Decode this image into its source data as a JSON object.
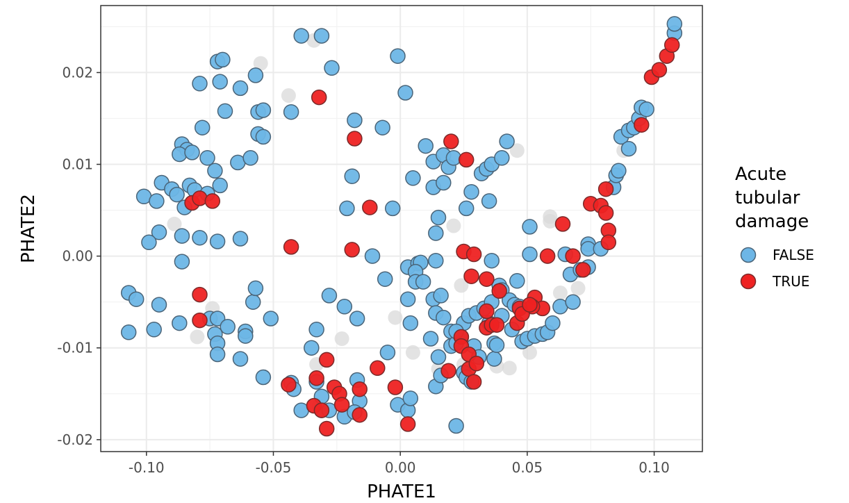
{
  "chart_data": {
    "type": "scatter",
    "xlabel": "PHATE1",
    "ylabel": "PHATE2",
    "xlim": [
      -0.118,
      0.119
    ],
    "ylim": [
      -0.0213,
      0.0273
    ],
    "x_ticks": [
      -0.1,
      -0.05,
      0.0,
      0.05,
      0.1
    ],
    "x_tick_labels": [
      "-0.10",
      "-0.05",
      "0.00",
      "0.05",
      "0.10"
    ],
    "y_ticks": [
      -0.02,
      -0.01,
      0.0,
      0.01,
      0.02
    ],
    "y_tick_labels": [
      "-0.02",
      "-0.01",
      "0.00",
      "0.01",
      "0.02"
    ],
    "grid": true,
    "legend": {
      "title_lines": [
        "Acute",
        "tubular",
        "damage"
      ],
      "position": "right",
      "entries": [
        {
          "label": "FALSE",
          "color": "#6db6e6"
        },
        {
          "label": "TRUE",
          "color": "#ee2222"
        }
      ]
    },
    "series": [
      {
        "name": "NA",
        "color": "#d9d9d9",
        "points": [
          [
            -0.055,
            0.021
          ],
          [
            -0.034,
            0.0235
          ],
          [
            -0.044,
            0.0175
          ],
          [
            -0.08,
            -0.0088
          ],
          [
            -0.074,
            -0.0057
          ],
          [
            -0.089,
            0.0035
          ],
          [
            -0.033,
            -0.0118
          ],
          [
            -0.023,
            -0.009
          ],
          [
            -0.002,
            -0.0067
          ],
          [
            0.021,
            0.0033
          ],
          [
            0.024,
            -0.0032
          ],
          [
            0.046,
            0.0115
          ],
          [
            0.059,
            0.0043
          ],
          [
            0.059,
            0.0038
          ],
          [
            0.07,
            -0.0035
          ],
          [
            0.038,
            -0.012
          ],
          [
            0.043,
            -0.0122
          ],
          [
            0.051,
            -0.0105
          ],
          [
            0.088,
            0.0115
          ],
          [
            0.015,
            -0.0123
          ],
          [
            0.025,
            -0.0118
          ],
          [
            0.063,
            -0.004
          ],
          [
            -0.032,
            -0.0163
          ],
          [
            0.005,
            -0.0105
          ]
        ]
      },
      {
        "name": "FALSE",
        "color": "#6db6e6",
        "points": [
          [
            -0.039,
            0.024
          ],
          [
            -0.031,
            0.024
          ],
          [
            -0.027,
            0.0205
          ],
          [
            -0.001,
            0.0218
          ],
          [
            0.002,
            0.0178
          ],
          [
            -0.079,
            0.0188
          ],
          [
            -0.072,
            0.0212
          ],
          [
            -0.07,
            0.0214
          ],
          [
            -0.071,
            0.019
          ],
          [
            -0.063,
            0.0183
          ],
          [
            -0.057,
            0.0197
          ],
          [
            -0.069,
            0.0158
          ],
          [
            -0.056,
            0.0157
          ],
          [
            -0.054,
            0.0159
          ],
          [
            -0.043,
            0.0157
          ],
          [
            -0.078,
            0.014
          ],
          [
            -0.056,
            0.0133
          ],
          [
            -0.054,
            0.013
          ],
          [
            -0.086,
            0.0122
          ],
          [
            -0.084,
            0.0116
          ],
          [
            -0.087,
            0.0111
          ],
          [
            -0.082,
            0.0113
          ],
          [
            -0.076,
            0.0107
          ],
          [
            -0.073,
            0.0093
          ],
          [
            -0.064,
            0.0102
          ],
          [
            -0.059,
            0.0107
          ],
          [
            -0.094,
            0.008
          ],
          [
            -0.09,
            0.0073
          ],
          [
            -0.088,
            0.0067
          ],
          [
            -0.083,
            0.0077
          ],
          [
            -0.081,
            0.0072
          ],
          [
            -0.076,
            0.0068
          ],
          [
            -0.071,
            0.0077
          ],
          [
            -0.101,
            0.0065
          ],
          [
            -0.096,
            0.006
          ],
          [
            -0.085,
            0.0053
          ],
          [
            -0.095,
            0.0026
          ],
          [
            -0.099,
            0.0015
          ],
          [
            -0.086,
            0.0022
          ],
          [
            -0.079,
            0.002
          ],
          [
            -0.072,
            0.0016
          ],
          [
            -0.063,
            0.0019
          ],
          [
            -0.086,
            -0.0006
          ],
          [
            -0.018,
            0.0148
          ],
          [
            -0.007,
            0.014
          ],
          [
            0.01,
            0.012
          ],
          [
            0.013,
            0.0103
          ],
          [
            0.017,
            0.011
          ],
          [
            0.019,
            0.0097
          ],
          [
            0.021,
            0.0107
          ],
          [
            0.032,
            0.009
          ],
          [
            0.034,
            0.0095
          ],
          [
            0.036,
            0.01
          ],
          [
            0.04,
            0.0107
          ],
          [
            0.042,
            0.0125
          ],
          [
            -0.019,
            0.0087
          ],
          [
            0.005,
            0.0085
          ],
          [
            0.013,
            0.0075
          ],
          [
            0.017,
            0.008
          ],
          [
            0.028,
            0.007
          ],
          [
            -0.021,
            0.0052
          ],
          [
            -0.003,
            0.0052
          ],
          [
            0.026,
            0.0052
          ],
          [
            0.035,
            0.006
          ],
          [
            0.015,
            0.0042
          ],
          [
            0.014,
            0.0025
          ],
          [
            -0.011,
            0
          ],
          [
            0.003,
            -0.0012
          ],
          [
            0.007,
            -0.0008
          ],
          [
            0.008,
            -0.0007
          ],
          [
            0.014,
            -0.0005
          ],
          [
            0.006,
            -0.0017
          ],
          [
            -0.006,
            -0.0025
          ],
          [
            0.006,
            -0.0028
          ],
          [
            0.009,
            -0.0028
          ],
          [
            0.036,
            -0.0005
          ],
          [
            0.039,
            -0.0032
          ],
          [
            0.046,
            -0.0027
          ],
          [
            0.051,
            0.0032
          ],
          [
            0.051,
            0.0002
          ],
          [
            0.065,
            0.0002
          ],
          [
            0.067,
            -0.002
          ],
          [
            0.074,
            0.0013
          ],
          [
            0.074,
            0.0008
          ],
          [
            0.074,
            -0.0012
          ],
          [
            0.079,
            0.0008
          ],
          [
            0.084,
            0.0075
          ],
          [
            0.085,
            0.0088
          ],
          [
            0.086,
            0.0093
          ],
          [
            0.087,
            0.013
          ],
          [
            0.09,
            0.0117
          ],
          [
            0.09,
            0.0137
          ],
          [
            0.092,
            0.014
          ],
          [
            0.094,
            0.015
          ],
          [
            0.095,
            0.0162
          ],
          [
            0.097,
            0.016
          ],
          [
            0.108,
            0.0243
          ],
          [
            0.108,
            0.0253
          ],
          [
            -0.107,
            -0.004
          ],
          [
            -0.104,
            -0.0047
          ],
          [
            -0.107,
            -0.0083
          ],
          [
            -0.097,
            -0.008
          ],
          [
            -0.095,
            -0.0053
          ],
          [
            -0.087,
            -0.0073
          ],
          [
            -0.075,
            -0.0068
          ],
          [
            -0.072,
            -0.0068
          ],
          [
            -0.073,
            -0.0085
          ],
          [
            -0.072,
            -0.0095
          ],
          [
            -0.072,
            -0.0107
          ],
          [
            -0.068,
            -0.0077
          ],
          [
            -0.061,
            -0.0082
          ],
          [
            -0.061,
            -0.0087
          ],
          [
            -0.063,
            -0.0112
          ],
          [
            -0.058,
            -0.005
          ],
          [
            -0.057,
            -0.0035
          ],
          [
            -0.054,
            -0.0132
          ],
          [
            -0.051,
            -0.0068
          ],
          [
            -0.043,
            -0.0138
          ],
          [
            -0.042,
            -0.0145
          ],
          [
            -0.039,
            -0.0168
          ],
          [
            -0.035,
            -0.01
          ],
          [
            -0.033,
            -0.008
          ],
          [
            -0.033,
            -0.0137
          ],
          [
            -0.031,
            -0.0153
          ],
          [
            -0.031,
            -0.0168
          ],
          [
            -0.028,
            -0.0043
          ],
          [
            -0.028,
            -0.0168
          ],
          [
            -0.022,
            -0.0055
          ],
          [
            -0.022,
            -0.0175
          ],
          [
            -0.017,
            -0.0068
          ],
          [
            -0.017,
            -0.0135
          ],
          [
            -0.016,
            -0.0158
          ],
          [
            -0.018,
            -0.017
          ],
          [
            -0.005,
            -0.0105
          ],
          [
            -0.001,
            -0.0162
          ],
          [
            0.003,
            -0.0168
          ],
          [
            0.004,
            -0.0155
          ],
          [
            0.003,
            -0.0047
          ],
          [
            0.004,
            -0.0073
          ],
          [
            0.012,
            -0.009
          ],
          [
            0.013,
            -0.0047
          ],
          [
            0.014,
            -0.0062
          ],
          [
            0.014,
            -0.0142
          ],
          [
            0.016,
            -0.013
          ],
          [
            0.015,
            -0.011
          ],
          [
            0.017,
            -0.0067
          ],
          [
            0.02,
            -0.0082
          ],
          [
            0.02,
            -0.0098
          ],
          [
            0.022,
            -0.0095
          ],
          [
            0.022,
            -0.0185
          ],
          [
            0.024,
            -0.0088
          ],
          [
            0.025,
            -0.0073
          ],
          [
            0.025,
            -0.0127
          ],
          [
            0.026,
            -0.0132
          ],
          [
            0.027,
            -0.0065
          ],
          [
            0.028,
            -0.0137
          ],
          [
            0.029,
            -0.0098
          ],
          [
            0.03,
            -0.0062
          ],
          [
            0.031,
            -0.011
          ],
          [
            0.033,
            -0.0057
          ],
          [
            0.035,
            -0.0073
          ],
          [
            0.036,
            -0.005
          ],
          [
            0.037,
            -0.0095
          ],
          [
            0.037,
            -0.0112
          ],
          [
            0.038,
            -0.0097
          ],
          [
            0.04,
            -0.0065
          ],
          [
            0.04,
            -0.0037
          ],
          [
            0.043,
            -0.0048
          ],
          [
            0.044,
            -0.008
          ],
          [
            0.045,
            -0.0053
          ],
          [
            0.047,
            -0.0055
          ],
          [
            0.048,
            -0.0093
          ],
          [
            0.05,
            -0.009
          ],
          [
            0.053,
            -0.0087
          ],
          [
            0.056,
            -0.0085
          ],
          [
            0.058,
            -0.0083
          ],
          [
            0.06,
            -0.0073
          ],
          [
            0.063,
            -0.0055
          ],
          [
            0.068,
            -0.005
          ],
          [
            0.071,
            -0.0015
          ],
          [
            0.016,
            -0.0043
          ],
          [
            0.022,
            -0.0082
          ]
        ]
      },
      {
        "name": "TRUE",
        "color": "#ee2222",
        "points": [
          [
            -0.032,
            0.0173
          ],
          [
            -0.018,
            0.0128
          ],
          [
            0.02,
            0.0125
          ],
          [
            0.026,
            0.0105
          ],
          [
            -0.012,
            0.0053
          ],
          [
            -0.043,
            0.001
          ],
          [
            -0.019,
            0.0007
          ],
          [
            0.025,
            0.0005
          ],
          [
            0.029,
            0.0002
          ],
          [
            0.058,
            0
          ],
          [
            0.068,
            0
          ],
          [
            0.072,
            -0.0015
          ],
          [
            0.028,
            -0.0022
          ],
          [
            0.034,
            -0.0025
          ],
          [
            0.039,
            -0.0038
          ],
          [
            0.053,
            -0.0045
          ],
          [
            0.056,
            -0.0057
          ],
          [
            0.052,
            -0.0055
          ],
          [
            0.047,
            -0.0057
          ],
          [
            0.064,
            0.0035
          ],
          [
            0.075,
            0.0057
          ],
          [
            0.079,
            0.0055
          ],
          [
            0.081,
            0.0073
          ],
          [
            0.081,
            0.0047
          ],
          [
            0.082,
            0.0028
          ],
          [
            0.082,
            0.0015
          ],
          [
            0.095,
            0.0143
          ],
          [
            0.099,
            0.0195
          ],
          [
            0.102,
            0.0203
          ],
          [
            0.105,
            0.0218
          ],
          [
            0.107,
            0.023
          ],
          [
            -0.082,
            0.0058
          ],
          [
            -0.079,
            0.0063
          ],
          [
            -0.074,
            0.006
          ],
          [
            -0.079,
            -0.0042
          ],
          [
            -0.079,
            -0.007
          ],
          [
            -0.044,
            -0.014
          ],
          [
            -0.033,
            -0.0133
          ],
          [
            -0.034,
            -0.0163
          ],
          [
            -0.029,
            -0.0113
          ],
          [
            -0.026,
            -0.0143
          ],
          [
            -0.024,
            -0.015
          ],
          [
            -0.023,
            -0.0162
          ],
          [
            -0.016,
            -0.0145
          ],
          [
            -0.016,
            -0.0173
          ],
          [
            -0.031,
            -0.0168
          ],
          [
            -0.029,
            -0.0188
          ],
          [
            -0.009,
            -0.0122
          ],
          [
            -0.002,
            -0.0143
          ],
          [
            0.003,
            -0.0183
          ],
          [
            0.019,
            -0.0125
          ],
          [
            0.024,
            -0.0088
          ],
          [
            0.024,
            -0.0098
          ],
          [
            0.027,
            -0.0107
          ],
          [
            0.027,
            -0.0123
          ],
          [
            0.029,
            -0.0137
          ],
          [
            0.03,
            -0.0117
          ],
          [
            0.034,
            -0.006
          ],
          [
            0.034,
            -0.0078
          ],
          [
            0.036,
            -0.0075
          ],
          [
            0.038,
            -0.0075
          ],
          [
            0.046,
            -0.0073
          ],
          [
            0.048,
            -0.0063
          ],
          [
            0.051,
            -0.0053
          ]
        ]
      }
    ]
  }
}
